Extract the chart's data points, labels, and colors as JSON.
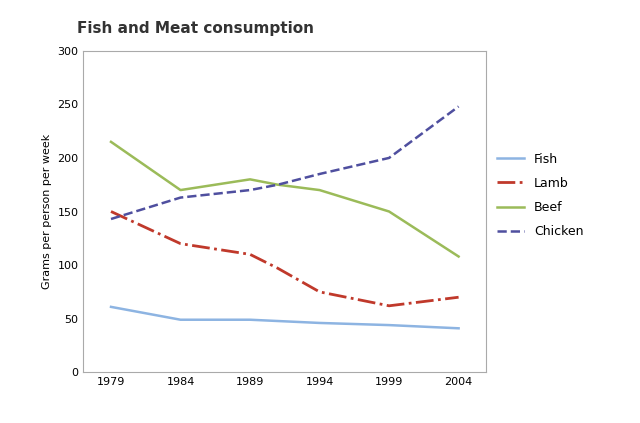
{
  "title": "Fish and Meat consumption",
  "ylabel": "Grams per person per week",
  "fish": {
    "label": "Fish",
    "color": "#8DB4E2",
    "linestyle": "-",
    "values_x": [
      1979,
      1984,
      1989,
      1994,
      1999,
      2004
    ],
    "values_y": [
      61,
      49,
      49,
      46,
      44,
      41
    ]
  },
  "lamb": {
    "label": "Lamb",
    "color": "#C0392B",
    "linestyle": "-.",
    "values_x": [
      1979,
      1984,
      1989,
      1991,
      1994,
      1999,
      2004
    ],
    "values_y": [
      150,
      120,
      110,
      97,
      75,
      62,
      70
    ]
  },
  "beef": {
    "label": "Beef",
    "color": "#9BBB59",
    "linestyle": "-",
    "values_x": [
      1979,
      1984,
      1989,
      1991,
      1994,
      1999,
      2004
    ],
    "values_y": [
      215,
      170,
      180,
      175,
      170,
      150,
      108
    ]
  },
  "chicken": {
    "label": "Chicken",
    "color": "#4F4F9F",
    "linestyle": "--",
    "values_x": [
      1979,
      1984,
      1989,
      1991,
      1994,
      1999,
      2004
    ],
    "values_y": [
      143,
      163,
      170,
      175,
      185,
      200,
      248
    ]
  },
  "ylim": [
    0,
    300
  ],
  "yticks": [
    0,
    50,
    100,
    150,
    200,
    250,
    300
  ],
  "xticks": [
    1979,
    1984,
    1989,
    1994,
    1999,
    2004
  ],
  "background_color": "#ffffff",
  "plot_bg_color": "#ffffff",
  "title_fontsize": 11,
  "axis_label_fontsize": 8,
  "tick_fontsize": 8,
  "legend_fontsize": 9
}
